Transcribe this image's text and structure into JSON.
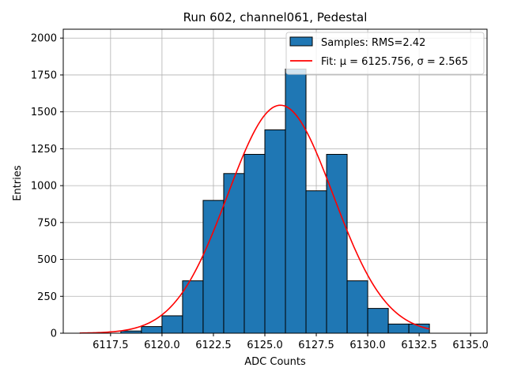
{
  "chart_data": {
    "type": "bar",
    "title": "Run 602, channel061, Pedestal",
    "xlabel": "ADC Counts",
    "ylabel": "Entries",
    "xlim": [
      6115.2,
      6135.8
    ],
    "ylim": [
      0,
      2060
    ],
    "xticks": [
      6117.5,
      6120.0,
      6122.5,
      6125.0,
      6127.5,
      6130.0,
      6132.5,
      6135.0
    ],
    "xtick_labels": [
      "6117.5",
      "6120.0",
      "6122.5",
      "6125.0",
      "6127.5",
      "6130.0",
      "6132.5",
      "6135.0"
    ],
    "yticks": [
      0,
      250,
      500,
      750,
      1000,
      1250,
      1500,
      1750,
      2000
    ],
    "ytick_labels": [
      "0",
      "250",
      "500",
      "750",
      "1000",
      "1250",
      "1500",
      "1750",
      "2000"
    ],
    "grid": true,
    "legend_position": "top-right",
    "series": [
      {
        "name": "Samples: RMS=2.42",
        "type": "histogram",
        "color": "#1f77b4",
        "edge_color": "#000000",
        "bins": [
          {
            "start": 6118,
            "end": 6119,
            "count": 15
          },
          {
            "start": 6119,
            "end": 6120,
            "count": 45
          },
          {
            "start": 6120,
            "end": 6121,
            "count": 118
          },
          {
            "start": 6121,
            "end": 6122,
            "count": 355
          },
          {
            "start": 6122,
            "end": 6123,
            "count": 900
          },
          {
            "start": 6123,
            "end": 6124,
            "count": 1082
          },
          {
            "start": 6124,
            "end": 6125,
            "count": 1212
          },
          {
            "start": 6125,
            "end": 6126,
            "count": 1378
          },
          {
            "start": 6126,
            "end": 6127,
            "count": 1790
          },
          {
            "start": 6127,
            "end": 6128,
            "count": 965
          },
          {
            "start": 6128,
            "end": 6129,
            "count": 1212
          },
          {
            "start": 6129,
            "end": 6130,
            "count": 355
          },
          {
            "start": 6130,
            "end": 6131,
            "count": 168
          },
          {
            "start": 6131,
            "end": 6132,
            "count": 62
          },
          {
            "start": 6132,
            "end": 6133,
            "count": 62
          }
        ]
      },
      {
        "name": "Fit: μ = 6125.756, σ = 2.565",
        "type": "line",
        "color": "#ff0000",
        "gaussian": {
          "mu": 6125.756,
          "sigma": 2.565,
          "amplitude": 1545
        },
        "x_range": [
          6116.0,
          6133.0
        ]
      }
    ]
  }
}
